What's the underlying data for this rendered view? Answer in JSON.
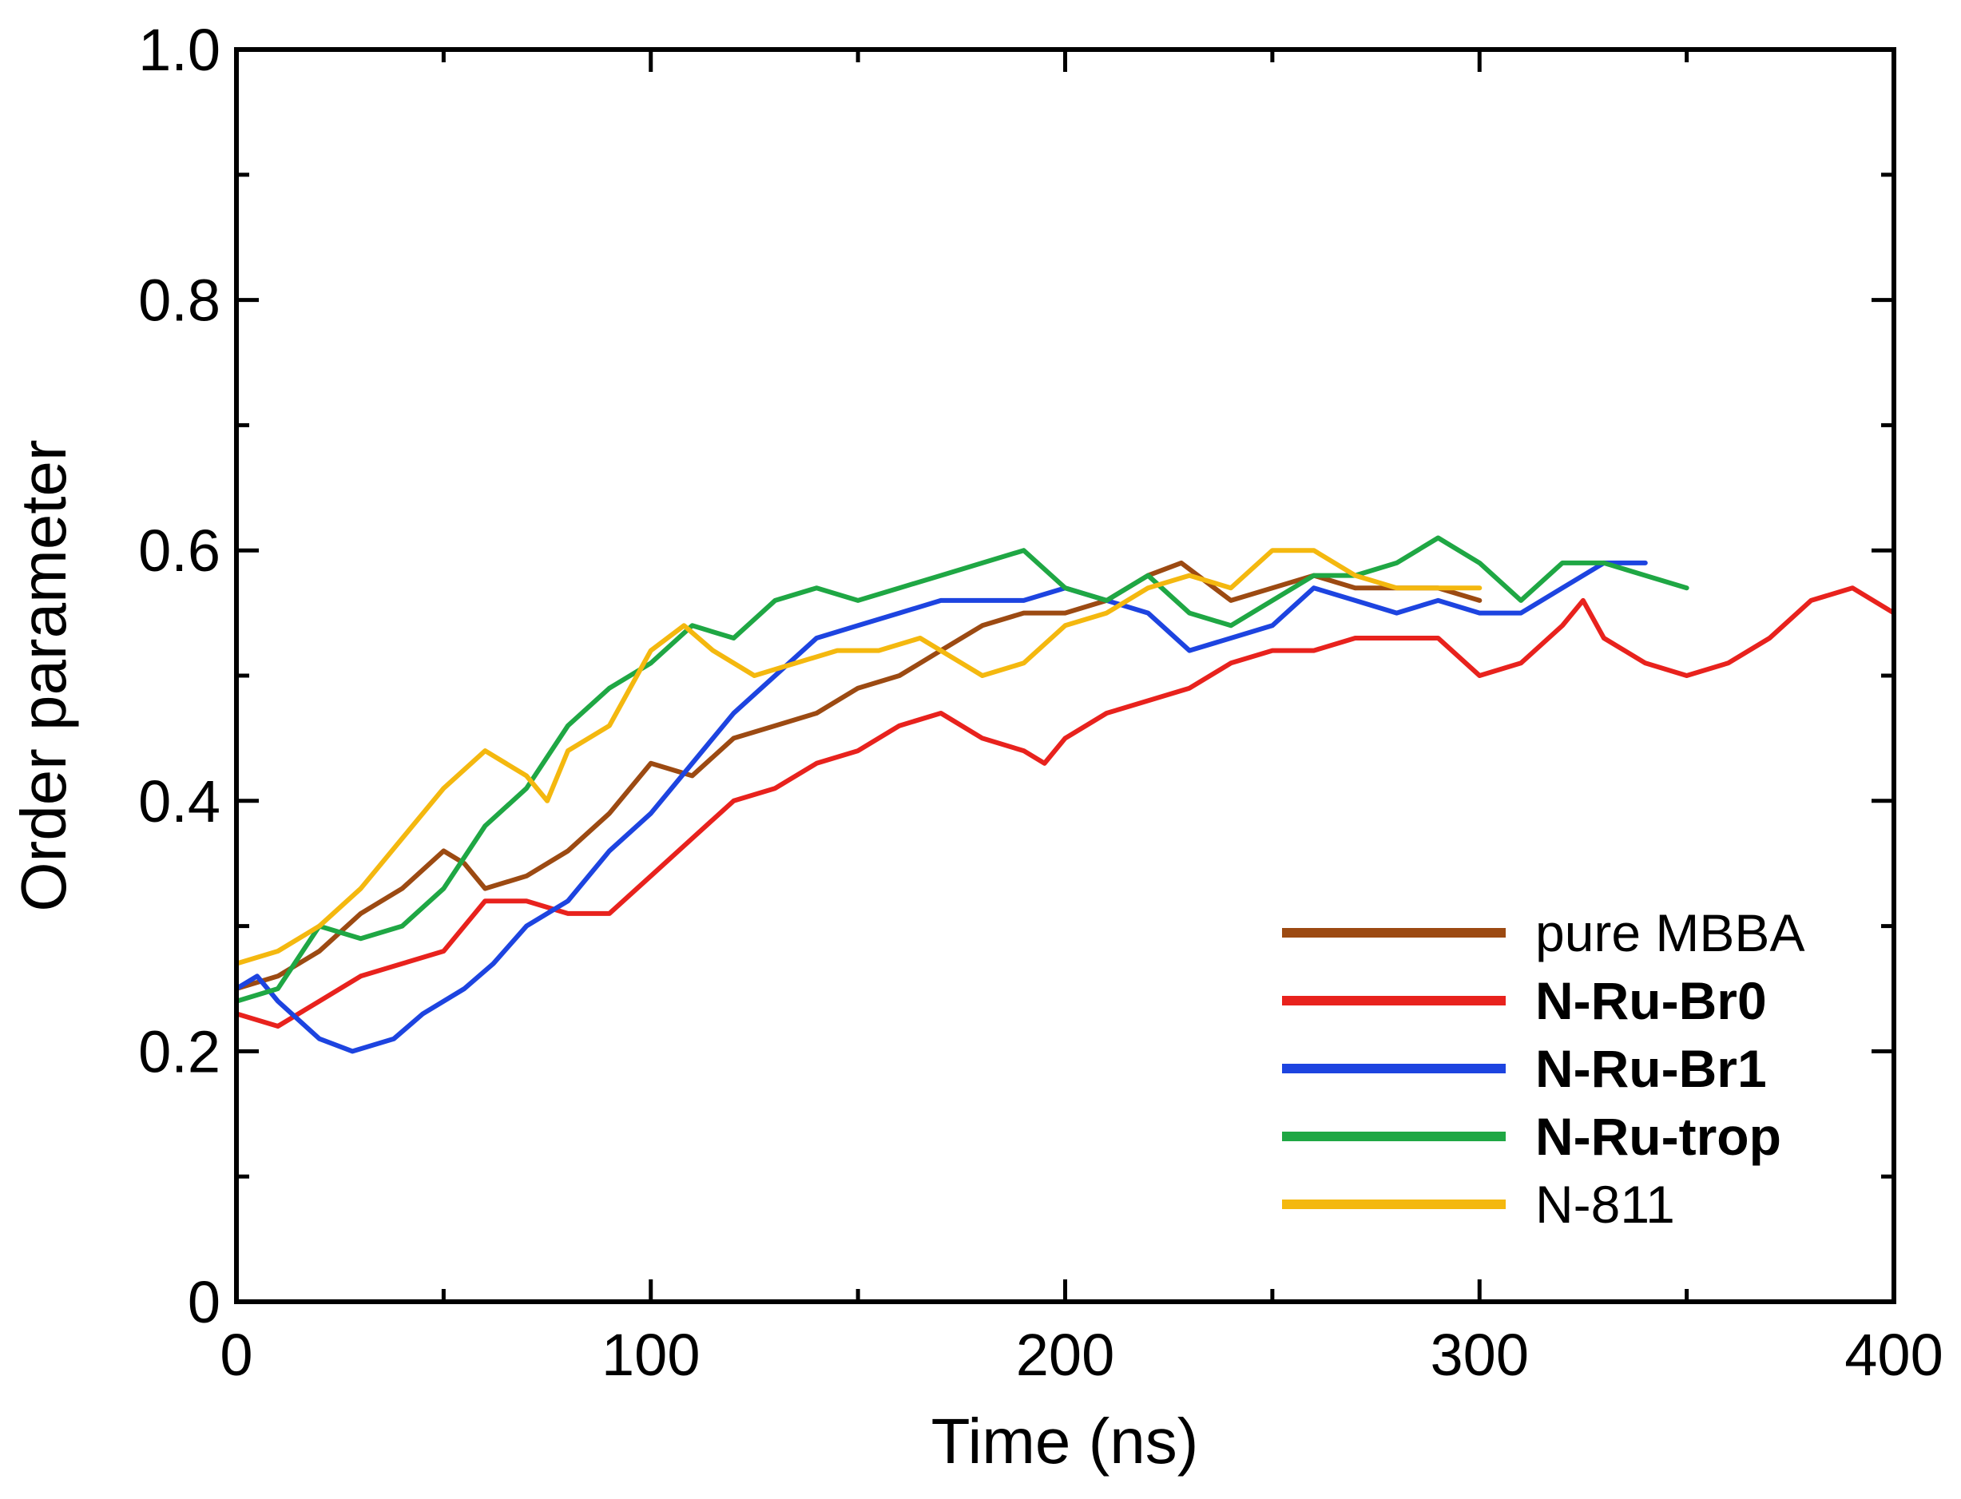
{
  "chart_data": {
    "type": "line",
    "title": "",
    "xlabel": "Time (ns)",
    "ylabel": "Order parameter",
    "xlim": [
      0,
      400
    ],
    "ylim": [
      0,
      1.0
    ],
    "x_ticks": [
      0,
      100,
      200,
      300,
      400
    ],
    "x_tick_labels": [
      "0",
      "100",
      "200",
      "300",
      "400"
    ],
    "y_ticks": [
      0,
      0.2,
      0.4,
      0.6,
      0.8,
      1.0
    ],
    "y_tick_labels": [
      "0",
      "0.2",
      "0.4",
      "0.6",
      "0.8",
      "1.0"
    ],
    "legend_position": "bottom-right",
    "grid": false,
    "series": [
      {
        "name": "pure MBBA",
        "color": "#9c4a12",
        "bold": false,
        "x": [
          0,
          10,
          20,
          30,
          40,
          50,
          55,
          60,
          70,
          80,
          90,
          100,
          110,
          120,
          130,
          140,
          150,
          160,
          170,
          180,
          190,
          200,
          210,
          220,
          228,
          240,
          250,
          260,
          270,
          280,
          290,
          300
        ],
        "y": [
          0.25,
          0.26,
          0.28,
          0.31,
          0.33,
          0.36,
          0.35,
          0.33,
          0.34,
          0.36,
          0.39,
          0.43,
          0.42,
          0.45,
          0.46,
          0.47,
          0.49,
          0.5,
          0.52,
          0.54,
          0.55,
          0.55,
          0.56,
          0.58,
          0.59,
          0.56,
          0.57,
          0.58,
          0.57,
          0.57,
          0.57,
          0.56
        ]
      },
      {
        "name": "N-Ru-Br0",
        "color": "#e8221d",
        "bold": true,
        "x": [
          0,
          10,
          20,
          30,
          40,
          50,
          60,
          70,
          80,
          90,
          100,
          110,
          120,
          130,
          140,
          150,
          160,
          170,
          180,
          190,
          195,
          200,
          210,
          220,
          230,
          240,
          250,
          260,
          270,
          280,
          290,
          300,
          310,
          320,
          325,
          330,
          340,
          350,
          360,
          370,
          380,
          390,
          400
        ],
        "y": [
          0.23,
          0.22,
          0.24,
          0.26,
          0.27,
          0.28,
          0.32,
          0.32,
          0.31,
          0.31,
          0.34,
          0.37,
          0.4,
          0.41,
          0.43,
          0.44,
          0.46,
          0.47,
          0.45,
          0.44,
          0.43,
          0.45,
          0.47,
          0.48,
          0.49,
          0.51,
          0.52,
          0.52,
          0.53,
          0.53,
          0.53,
          0.5,
          0.51,
          0.54,
          0.56,
          0.53,
          0.51,
          0.5,
          0.51,
          0.53,
          0.56,
          0.57,
          0.55
        ]
      },
      {
        "name": "N-Ru-Br1",
        "color": "#1d44e0",
        "bold": true,
        "x": [
          0,
          5,
          10,
          20,
          28,
          38,
          45,
          55,
          62,
          70,
          80,
          90,
          100,
          110,
          120,
          130,
          140,
          150,
          160,
          170,
          180,
          190,
          200,
          210,
          220,
          230,
          240,
          250,
          260,
          270,
          280,
          290,
          300,
          310,
          320,
          330,
          340
        ],
        "y": [
          0.25,
          0.26,
          0.24,
          0.21,
          0.2,
          0.21,
          0.23,
          0.25,
          0.27,
          0.3,
          0.32,
          0.36,
          0.39,
          0.43,
          0.47,
          0.5,
          0.53,
          0.54,
          0.55,
          0.56,
          0.56,
          0.56,
          0.57,
          0.56,
          0.55,
          0.52,
          0.53,
          0.54,
          0.57,
          0.56,
          0.55,
          0.56,
          0.55,
          0.55,
          0.57,
          0.59,
          0.59
        ]
      },
      {
        "name": "N-Ru-trop",
        "color": "#1fa744",
        "bold": true,
        "x": [
          0,
          10,
          20,
          30,
          40,
          50,
          60,
          70,
          80,
          90,
          100,
          110,
          120,
          130,
          140,
          150,
          160,
          170,
          180,
          190,
          200,
          210,
          220,
          230,
          240,
          250,
          260,
          270,
          280,
          290,
          300,
          310,
          320,
          330,
          340,
          350
        ],
        "y": [
          0.24,
          0.25,
          0.3,
          0.29,
          0.3,
          0.33,
          0.38,
          0.41,
          0.46,
          0.49,
          0.51,
          0.54,
          0.53,
          0.56,
          0.57,
          0.56,
          0.57,
          0.58,
          0.59,
          0.6,
          0.57,
          0.56,
          0.58,
          0.55,
          0.54,
          0.56,
          0.58,
          0.58,
          0.59,
          0.61,
          0.59,
          0.56,
          0.59,
          0.59,
          0.58,
          0.57
        ]
      },
      {
        "name": "N-811",
        "color": "#f4b80f",
        "bold": false,
        "x": [
          0,
          10,
          20,
          30,
          40,
          50,
          60,
          70,
          75,
          80,
          90,
          100,
          108,
          115,
          125,
          135,
          145,
          155,
          165,
          175,
          180,
          190,
          200,
          210,
          220,
          230,
          240,
          250,
          260,
          270,
          280,
          290,
          300
        ],
        "y": [
          0.27,
          0.28,
          0.3,
          0.33,
          0.37,
          0.41,
          0.44,
          0.42,
          0.4,
          0.44,
          0.46,
          0.52,
          0.54,
          0.52,
          0.5,
          0.51,
          0.52,
          0.52,
          0.53,
          0.51,
          0.5,
          0.51,
          0.54,
          0.55,
          0.57,
          0.58,
          0.57,
          0.6,
          0.6,
          0.58,
          0.57,
          0.57,
          0.57
        ]
      }
    ]
  }
}
